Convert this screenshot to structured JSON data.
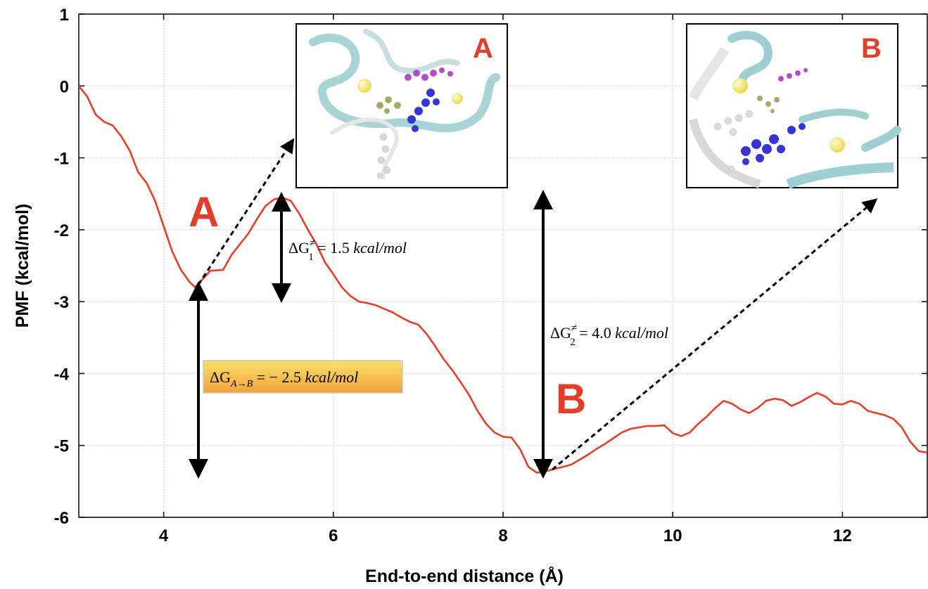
{
  "chart_data": {
    "type": "line",
    "xlabel": "End-to-end distance (Å)",
    "ylabel": "PMF (kcal/mol)",
    "xlim": [
      3,
      13
    ],
    "ylim": [
      -6,
      1
    ],
    "x_ticks": [
      "4",
      "6",
      "8",
      "10",
      "12"
    ],
    "y_ticks": [
      "1",
      "0",
      "-1",
      "-2",
      "-3",
      "-4",
      "-5",
      "-6"
    ],
    "grid": true,
    "line_color": "#e0402a",
    "series": [
      {
        "x": [
          3.0,
          3.1,
          3.2,
          3.3,
          3.4,
          3.5,
          3.6,
          3.7,
          3.8,
          3.9,
          4.0,
          4.1,
          4.2,
          4.3,
          4.37,
          4.45,
          4.55,
          4.7,
          4.8,
          4.9,
          5.0,
          5.1,
          5.2,
          5.3,
          5.4,
          5.5,
          5.6,
          5.7,
          5.8,
          5.9,
          6.0,
          6.1,
          6.2,
          6.3,
          6.4,
          6.5,
          6.6,
          6.7,
          6.8,
          6.9,
          7.0,
          7.1,
          7.2,
          7.3,
          7.4,
          7.5,
          7.6,
          7.7,
          7.8,
          7.9,
          8.0,
          8.1,
          8.2,
          8.3,
          8.4,
          8.5,
          8.6,
          8.7,
          8.8,
          8.9,
          9.0,
          9.1,
          9.2,
          9.3,
          9.4,
          9.5,
          9.6,
          9.7,
          9.8,
          9.9,
          10.0,
          10.1,
          10.2,
          10.3,
          10.4,
          10.5,
          10.6,
          10.7,
          10.8,
          10.9,
          11.0,
          11.1,
          11.2,
          11.3,
          11.4,
          11.5,
          11.6,
          11.7,
          11.8,
          11.9,
          12.0,
          12.1,
          12.2,
          12.3,
          12.4,
          12.5,
          12.6,
          12.7,
          12.8,
          12.9,
          13.0
        ],
        "y": [
          0.0,
          -0.15,
          -0.4,
          -0.5,
          -0.55,
          -0.7,
          -0.9,
          -1.2,
          -1.35,
          -1.6,
          -1.95,
          -2.3,
          -2.55,
          -2.72,
          -2.8,
          -2.7,
          -2.57,
          -2.56,
          -2.35,
          -2.2,
          -2.05,
          -1.85,
          -1.67,
          -1.58,
          -1.55,
          -1.6,
          -1.78,
          -2.0,
          -2.2,
          -2.45,
          -2.62,
          -2.8,
          -2.92,
          -3.0,
          -3.02,
          -3.05,
          -3.1,
          -3.15,
          -3.22,
          -3.28,
          -3.32,
          -3.45,
          -3.62,
          -3.8,
          -3.95,
          -4.12,
          -4.3,
          -4.52,
          -4.7,
          -4.82,
          -4.88,
          -4.89,
          -5.05,
          -5.3,
          -5.38,
          -5.36,
          -5.33,
          -5.3,
          -5.27,
          -5.2,
          -5.13,
          -5.05,
          -4.98,
          -4.9,
          -4.82,
          -4.77,
          -4.75,
          -4.73,
          -4.73,
          -4.72,
          -4.83,
          -4.87,
          -4.82,
          -4.7,
          -4.6,
          -4.48,
          -4.38,
          -4.42,
          -4.5,
          -4.55,
          -4.48,
          -4.38,
          -4.35,
          -4.37,
          -4.45,
          -4.4,
          -4.33,
          -4.27,
          -4.32,
          -4.42,
          -4.43,
          -4.38,
          -4.42,
          -4.52,
          -4.55,
          -4.58,
          -4.63,
          -4.75,
          -4.95,
          -5.08,
          -5.1
        ]
      }
    ],
    "annotations": {
      "label_a": "A",
      "label_b": "B",
      "inset_a_label": "A",
      "inset_b_label": "B",
      "dg1_symbol": "ΔG",
      "dg1_sup": "≠",
      "dg1_sub": "1",
      "dg1_eq": " = 1.5 ",
      "dg1_unit": "kcal/mol",
      "dg2_symbol": "ΔG",
      "dg2_sup": "≠",
      "dg2_sub": "2",
      "dg2_eq": " = 4.0 ",
      "dg2_unit": "kcal/mol",
      "dgab_symbol": "ΔG",
      "dgab_sub": "A→B",
      "dgab_eq": " = − 2.5 ",
      "dgab_unit": "kcal/mol"
    }
  }
}
